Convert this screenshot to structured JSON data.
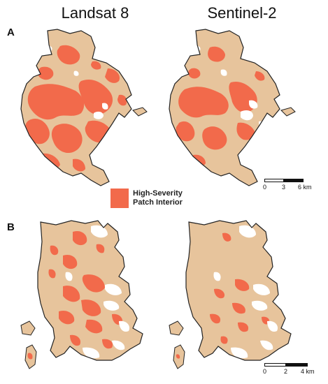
{
  "columns": [
    "Landsat 8",
    "Sentinel-2"
  ],
  "panels": [
    "A",
    "B"
  ],
  "legend": {
    "line1": "High-Severity",
    "line2": "Patch Interior",
    "color": "#f26a4b"
  },
  "colors": {
    "burn_area": "#e7c49c",
    "outline": "#222222",
    "high_severity": "#f26a4b",
    "unburned": "#ffffff"
  },
  "scalebar_A": {
    "ticks": [
      "0",
      "3",
      "6 km"
    ]
  },
  "scalebar_B": {
    "ticks": [
      "0",
      "2",
      "4 km"
    ]
  }
}
